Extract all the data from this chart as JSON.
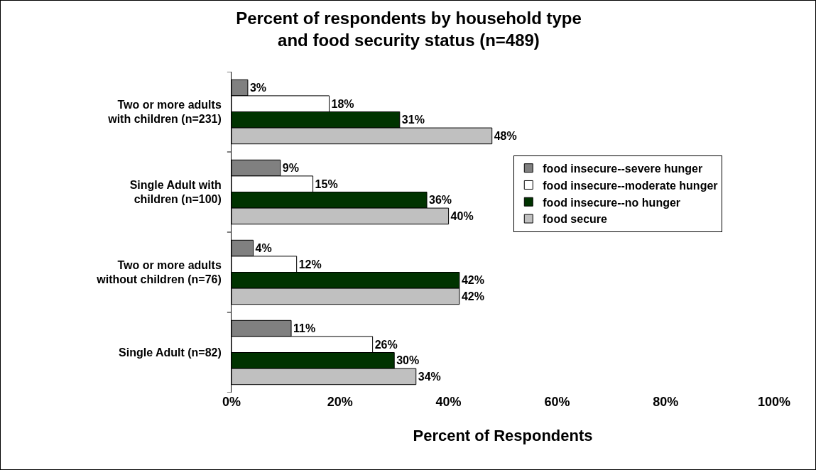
{
  "chart_data": {
    "type": "bar",
    "orientation": "horizontal",
    "title": "Percent of respondents by household type\nand food security status (n=489)",
    "xlabel": "Percent of Respondents",
    "categories": [
      "Two or more adults\nwith children (n=231)",
      "Single Adult with\nchildren (n=100)",
      "Two or more adults\nwithout children (n=76)",
      "Single Adult (n=82)"
    ],
    "series": [
      {
        "name": "food insecure--severe hunger",
        "color": "#808080",
        "values": [
          3,
          9,
          4,
          11
        ],
        "value_labels": [
          "3%",
          "9%",
          "4%",
          "11%"
        ]
      },
      {
        "name": "food insecure--moderate hunger",
        "color": "#ffffff",
        "values": [
          18,
          15,
          12,
          26
        ],
        "value_labels": [
          "18%",
          "15%",
          "12%",
          "26%"
        ]
      },
      {
        "name": "food insecure--no hunger",
        "color": "#003300",
        "values": [
          31,
          36,
          42,
          30
        ],
        "value_labels": [
          "31%",
          "36%",
          "42%",
          "30%"
        ]
      },
      {
        "name": "food secure",
        "color": "#c0c0c0",
        "values": [
          48,
          40,
          42,
          34
        ],
        "value_labels": [
          "48%",
          "40%",
          "42%",
          "34%"
        ]
      }
    ],
    "xlim": [
      0,
      100
    ],
    "xticks": [
      {
        "value": 0,
        "label": "0%"
      },
      {
        "value": 20,
        "label": "20%"
      },
      {
        "value": 40,
        "label": "40%"
      },
      {
        "value": 60,
        "label": "60%"
      },
      {
        "value": 80,
        "label": "80%"
      },
      {
        "value": 100,
        "label": "100%"
      }
    ],
    "grid": false,
    "legend": "right"
  }
}
